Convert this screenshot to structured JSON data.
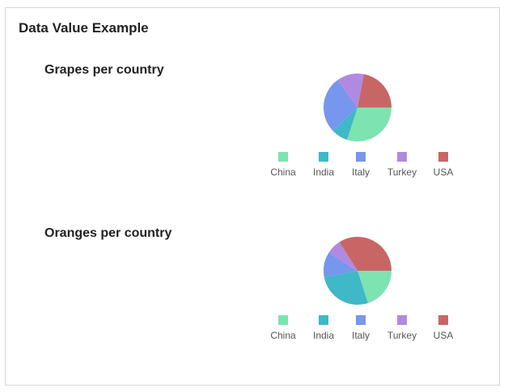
{
  "card": {
    "title": "Data Value Example"
  },
  "colors": {
    "China": "#7de3b0",
    "India": "#3fb8c8",
    "Italy": "#7796ee",
    "Turkey": "#b08ae0",
    "USA": "#c86666"
  },
  "chart_data": [
    {
      "type": "pie",
      "title": "Grapes per country",
      "labels": [
        "China",
        "India",
        "Italy",
        "Turkey",
        "USA"
      ],
      "values": [
        30,
        8,
        27,
        13,
        22
      ],
      "legend": "bottom"
    },
    {
      "type": "pie",
      "title": "Oranges per country",
      "labels": [
        "China",
        "India",
        "Italy",
        "Turkey",
        "USA"
      ],
      "values": [
        20,
        27,
        12,
        7,
        34
      ],
      "legend": "bottom"
    }
  ]
}
